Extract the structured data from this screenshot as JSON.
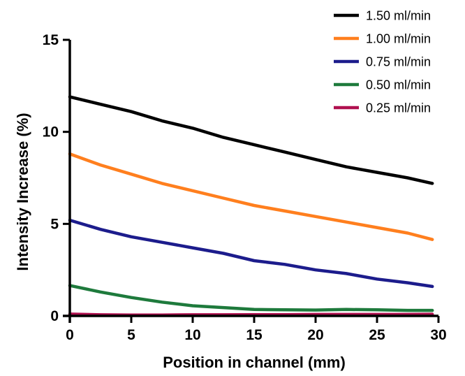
{
  "chart_data": {
    "type": "line",
    "xlabel": "Position in channel (mm)",
    "ylabel": "Intensity Increase (%)",
    "xlim": [
      0,
      30
    ],
    "ylim": [
      0,
      15
    ],
    "xticks": [
      "0",
      "5",
      "10",
      "15",
      "20",
      "25",
      "30"
    ],
    "yticks": [
      "0",
      "5",
      "10",
      "15"
    ],
    "grid": false,
    "legend_position": "top-right",
    "x": [
      0,
      2.5,
      5,
      7.5,
      10,
      12.5,
      15,
      17.5,
      20,
      22.5,
      25,
      27.5,
      29.5
    ],
    "series": [
      {
        "name": "1.50 ml/min",
        "color": "#000000",
        "values": [
          11.9,
          11.5,
          11.1,
          10.6,
          10.2,
          9.7,
          9.3,
          8.9,
          8.5,
          8.1,
          7.8,
          7.5,
          7.2
        ]
      },
      {
        "name": "1.00 ml/min",
        "color": "#ff7f1e",
        "values": [
          8.8,
          8.2,
          7.7,
          7.2,
          6.8,
          6.4,
          6.0,
          5.7,
          5.4,
          5.1,
          4.8,
          4.5,
          4.15
        ]
      },
      {
        "name": "0.75 ml/min",
        "color": "#1c1c8c",
        "values": [
          5.2,
          4.7,
          4.3,
          4.0,
          3.7,
          3.4,
          3.0,
          2.8,
          2.5,
          2.3,
          2.0,
          1.8,
          1.6
        ]
      },
      {
        "name": "0.50 ml/min",
        "color": "#1e7a3c",
        "values": [
          1.65,
          1.3,
          1.0,
          0.75,
          0.55,
          0.45,
          0.35,
          0.33,
          0.32,
          0.35,
          0.33,
          0.3,
          0.3
        ]
      },
      {
        "name": "0.25 ml/min",
        "color": "#b0104f",
        "values": [
          0.1,
          0.06,
          0.05,
          0.05,
          0.06,
          0.06,
          0.07,
          0.07,
          0.08,
          0.08,
          0.08,
          0.08,
          0.09
        ]
      }
    ]
  }
}
